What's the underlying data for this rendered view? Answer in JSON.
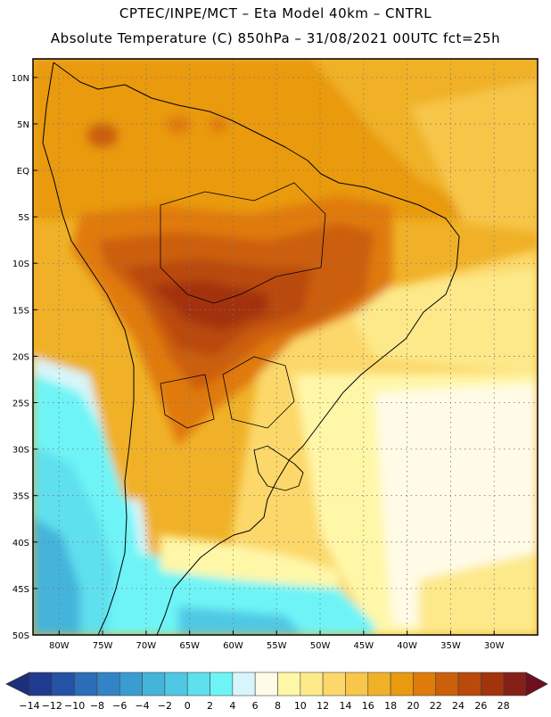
{
  "header": {
    "line1": "CPTEC/INPE/MCT  –  Eta Model 40km  –  CNTRL",
    "line2": "Absolute Temperature (C) 850hPa – 31/08/2021 00UTC fct=25h"
  },
  "map": {
    "lat_labels": [
      "10N",
      "5N",
      "EQ",
      "5S",
      "10S",
      "15S",
      "20S",
      "25S",
      "30S",
      "35S",
      "40S",
      "45S",
      "50S"
    ],
    "lon_labels": [
      "80W",
      "75W",
      "70W",
      "65W",
      "60W",
      "55W",
      "50W",
      "45W",
      "40W",
      "35W",
      "30W"
    ],
    "lat_range": [
      -50,
      12
    ],
    "lon_range": [
      -83,
      -25
    ],
    "gridlines": "dotted",
    "colors": {
      "ocean_warm": "#e8a800",
      "ocean_mid": "#f5c62c",
      "land_hot": "#c8500f",
      "land_very_hot": "#a8380a",
      "cool": "#fde98a",
      "pale": "#fff6d8",
      "cyan": "#5fe8f2",
      "cyan_deep": "#26c6dc"
    }
  },
  "legend": {
    "labels": [
      "-14",
      "-12",
      "-10",
      "-8",
      "-6",
      "-4",
      "-2",
      "0",
      "2",
      "4",
      "6",
      "8",
      "10",
      "12",
      "14",
      "16",
      "18",
      "20",
      "22",
      "24",
      "26",
      "28"
    ],
    "colors": [
      "#1f3a8e",
      "#2452a6",
      "#2b6db8",
      "#3284c6",
      "#3a9cd0",
      "#45b4db",
      "#50c8e4",
      "#5fe0ee",
      "#6ef4f6",
      "#d6f6fb",
      "#fffbe6",
      "#fff7a8",
      "#fde98a",
      "#fcd86a",
      "#f7c64a",
      "#f0b128",
      "#e99a0e",
      "#e07a0a",
      "#cc5f0c",
      "#b94a0b",
      "#a2330b",
      "#852018"
    ],
    "end_left_color": "#1b2f7a",
    "end_right_color": "#6f0f1e"
  }
}
